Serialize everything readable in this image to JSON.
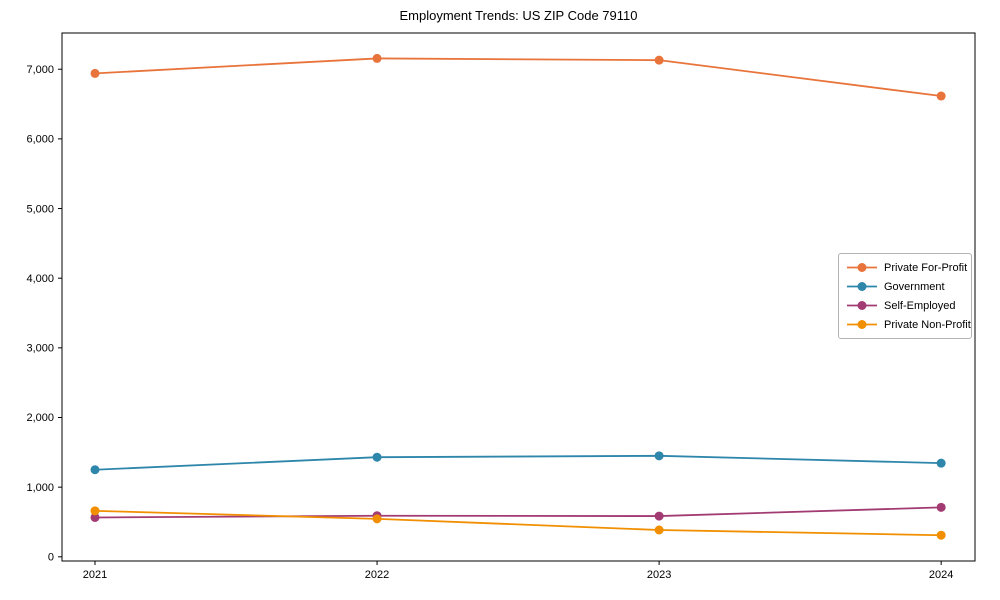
{
  "chart_data": {
    "type": "line",
    "title": "Employment Trends: US ZIP Code 79110",
    "xlabel": "",
    "ylabel": "",
    "x": [
      2021,
      2022,
      2023,
      2024
    ],
    "x_tick_labels": [
      "2021",
      "2022",
      "2023",
      "2024"
    ],
    "series": [
      {
        "name": "Private For-Profit",
        "color": "#E8743B",
        "values": [
          6940,
          7155,
          7130,
          6615
        ]
      },
      {
        "name": "Government",
        "color": "#2E86AB",
        "values": [
          1250,
          1430,
          1450,
          1345
        ]
      },
      {
        "name": "Self-Employed",
        "color": "#A23B72",
        "values": [
          565,
          590,
          585,
          710
        ]
      },
      {
        "name": "Private Non-Profit",
        "color": "#F18F01",
        "values": [
          660,
          545,
          385,
          310
        ]
      }
    ],
    "yticks": [
      {
        "value": 0,
        "label": "0"
      },
      {
        "value": 1000,
        "label": "1,000"
      },
      {
        "value": 2000,
        "label": "2,000"
      },
      {
        "value": 3000,
        "label": "3,000"
      },
      {
        "value": 4000,
        "label": "4,000"
      },
      {
        "value": 5000,
        "label": "5,000"
      },
      {
        "value": 6000,
        "label": "6,000"
      },
      {
        "value": 7000,
        "label": "7,000"
      }
    ],
    "xlim": [
      2020.883,
      2024.12
    ],
    "ylim": [
      -60,
      7520
    ],
    "grid": false,
    "legend_position": "center-right",
    "marker": "circle",
    "colors": {
      "axis": "#000000",
      "text": "#000000",
      "background": "#ffffff",
      "legend_border": "#b3b3b3"
    }
  }
}
